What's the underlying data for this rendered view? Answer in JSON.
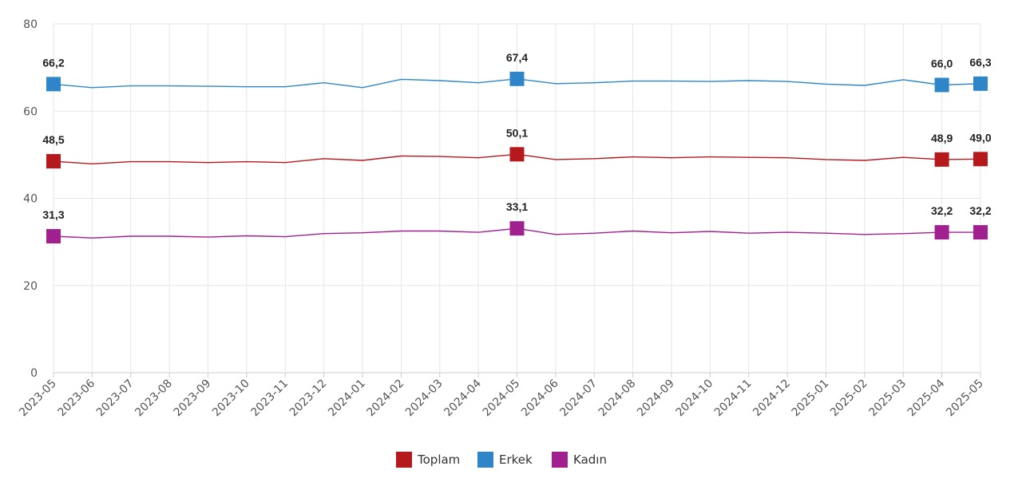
{
  "chart_data": {
    "type": "line",
    "x": [
      "2023-05",
      "2023-06",
      "2023-07",
      "2023-08",
      "2023-09",
      "2023-10",
      "2023-11",
      "2023-12",
      "2024-01",
      "2024-02",
      "2024-03",
      "2024-04",
      "2024-05",
      "2024-06",
      "2024-07",
      "2024-08",
      "2024-09",
      "2024-10",
      "2024-11",
      "2024-12",
      "2025-01",
      "2025-02",
      "2025-03",
      "2025-04",
      "2025-05"
    ],
    "ylim": [
      0,
      80
    ],
    "yticks": [
      0,
      20,
      40,
      60,
      80
    ],
    "grid": true,
    "legend_position": "bottom-center",
    "series": [
      {
        "name": "Toplam",
        "color": "#b5191c",
        "values": [
          48.5,
          47.9,
          48.4,
          48.4,
          48.2,
          48.4,
          48.2,
          49.1,
          48.7,
          49.7,
          49.6,
          49.3,
          50.1,
          48.9,
          49.1,
          49.5,
          49.3,
          49.5,
          49.4,
          49.3,
          48.9,
          48.7,
          49.4,
          48.9,
          49.0
        ],
        "labels": [
          {
            "index": 0,
            "text": "48,5"
          },
          {
            "index": 12,
            "text": "50,1"
          },
          {
            "index": 23,
            "text": "48,9"
          },
          {
            "index": 24,
            "text": "49,0"
          }
        ]
      },
      {
        "name": "Erkek",
        "color": "#2e86c8",
        "values": [
          66.2,
          65.4,
          65.8,
          65.8,
          65.7,
          65.6,
          65.6,
          66.5,
          65.4,
          67.3,
          67.0,
          66.5,
          67.4,
          66.3,
          66.5,
          66.9,
          66.9,
          66.8,
          67.0,
          66.8,
          66.2,
          65.9,
          67.2,
          66.0,
          66.3
        ],
        "labels": [
          {
            "index": 0,
            "text": "66,2"
          },
          {
            "index": 12,
            "text": "67,4"
          },
          {
            "index": 23,
            "text": "66,0"
          },
          {
            "index": 24,
            "text": "66,3"
          }
        ]
      },
      {
        "name": "Kadın",
        "color": "#a0208f",
        "values": [
          31.3,
          30.9,
          31.3,
          31.3,
          31.1,
          31.4,
          31.2,
          31.9,
          32.1,
          32.5,
          32.5,
          32.2,
          33.1,
          31.7,
          32.0,
          32.5,
          32.1,
          32.4,
          32.0,
          32.2,
          32.0,
          31.7,
          31.9,
          32.2,
          32.2
        ],
        "labels": [
          {
            "index": 0,
            "text": "31,3"
          },
          {
            "index": 12,
            "text": "33,1"
          },
          {
            "index": 23,
            "text": "32,2"
          },
          {
            "index": 24,
            "text": "32,2"
          }
        ]
      }
    ]
  }
}
